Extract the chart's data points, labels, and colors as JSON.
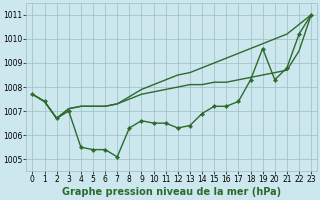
{
  "background_color": "#cce8ee",
  "grid_color": "#9bbfbf",
  "line_color": "#2d6a2d",
  "marker_color": "#2d6a2d",
  "xlabel": "Graphe pression niveau de la mer (hPa)",
  "xlabel_fontsize": 7,
  "xlabel_fontweight": "bold",
  "xlim": [
    -0.5,
    23.5
  ],
  "ylim": [
    1004.5,
    1011.5
  ],
  "yticks": [
    1005,
    1006,
    1007,
    1008,
    1009,
    1010,
    1011
  ],
  "xticks": [
    0,
    1,
    2,
    3,
    4,
    5,
    6,
    7,
    8,
    9,
    10,
    11,
    12,
    13,
    14,
    15,
    16,
    17,
    18,
    19,
    20,
    21,
    22,
    23
  ],
  "series": [
    [
      1007.7,
      1007.4,
      1006.7,
      1007.0,
      1005.5,
      1005.4,
      1005.4,
      1005.1,
      1006.3,
      1006.6,
      1006.5,
      1006.5,
      1006.3,
      1006.4,
      1006.9,
      1007.2,
      1007.2,
      1007.4,
      1008.3,
      1009.6,
      1008.3,
      1008.8,
      1010.2,
      1011.0
    ],
    [
      1007.7,
      1007.4,
      1006.7,
      1007.1,
      1007.2,
      1007.2,
      1007.2,
      1007.3,
      1007.6,
      1007.9,
      1008.1,
      1008.3,
      1008.5,
      1008.6,
      1008.8,
      1009.0,
      1009.2,
      1009.4,
      1009.6,
      1009.8,
      1010.0,
      1010.2,
      1010.6,
      1011.0
    ],
    [
      1007.7,
      1007.4,
      1006.7,
      1007.1,
      1007.2,
      1007.2,
      1007.2,
      1007.3,
      1007.5,
      1007.7,
      1007.8,
      1007.9,
      1008.0,
      1008.1,
      1008.1,
      1008.2,
      1008.2,
      1008.3,
      1008.4,
      1008.5,
      1008.6,
      1008.7,
      1009.5,
      1011.0
    ]
  ],
  "series_has_markers": [
    true,
    false,
    false
  ],
  "tick_fontsize": 5.5
}
